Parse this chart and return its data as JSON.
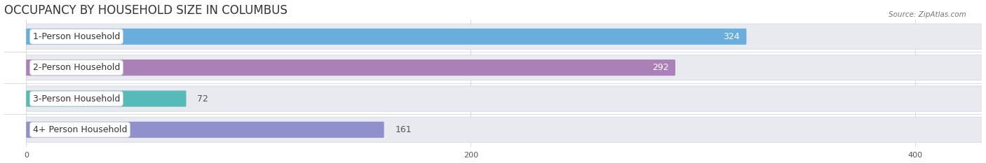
{
  "title": "OCCUPANCY BY HOUSEHOLD SIZE IN COLUMBUS",
  "source": "Source: ZipAtlas.com",
  "categories": [
    "1-Person Household",
    "2-Person Household",
    "3-Person Household",
    "4+ Person Household"
  ],
  "values": [
    324,
    292,
    72,
    161
  ],
  "bar_colors": [
    "#6aaede",
    "#ab7fb8",
    "#58bab8",
    "#9090cc"
  ],
  "xlim": [
    -10,
    430
  ],
  "xticks": [
    0,
    200,
    400
  ],
  "background_color": "#ffffff",
  "bar_bg_color": "#e8eaf0",
  "title_fontsize": 12,
  "label_fontsize": 9,
  "value_fontsize": 9,
  "bar_height": 0.52
}
